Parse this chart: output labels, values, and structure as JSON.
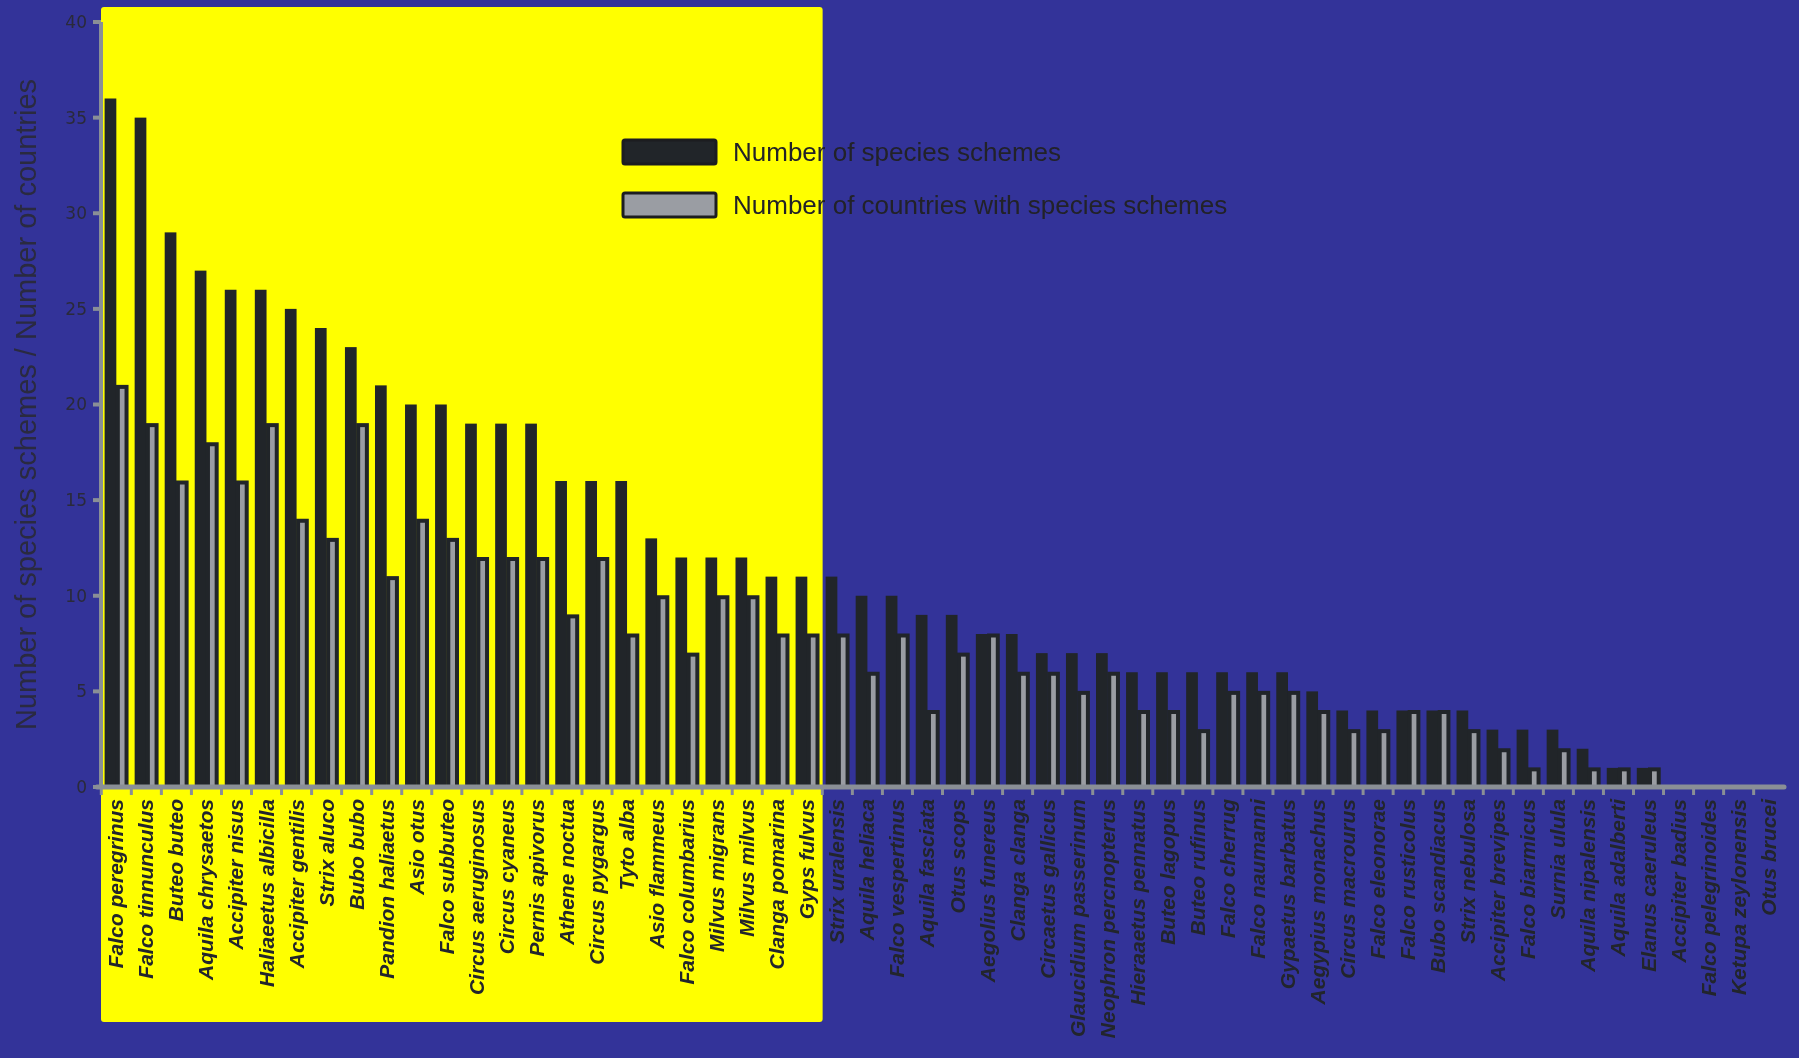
{
  "chart_data": {
    "type": "bar",
    "ylabel": "Number of species schemes / Number of countries",
    "categories": [
      "Falco peregrinus",
      "Falco tinnunculus",
      "Buteo buteo",
      "Aquila chrysaetos",
      "Accipiter nisus",
      "Haliaeetus albicilla",
      "Accipiter gentilis",
      "Strix aluco",
      "Bubo bubo",
      "Pandion haliaetus",
      "Asio otus",
      "Falco subbuteo",
      "Circus aeruginosus",
      "Circus cyaneus",
      "Pernis apivorus",
      "Athene noctua",
      "Circus pygargus",
      "Tyto alba",
      "Asio flammeus",
      "Falco columbarius",
      "Milvus migrans",
      "Milvus milvus",
      "Clanga pomarina",
      "Gyps fulvus",
      "Strix uralensis",
      "Aquila heliaca",
      "Falco vespertinus",
      "Aquila fasciata",
      "Otus scops",
      "Aegolius funereus",
      "Clanga clanga",
      "Circaetus gallicus",
      "Glaucidium passerinum",
      "Neophron percnopterus",
      "Hieraaetus pennatus",
      "Buteo lagopus",
      "Buteo rufinus",
      "Falco cherrug",
      "Falco naumanni",
      "Gypaetus barbatus",
      "Aegypius monachus",
      "Circus macrourus",
      "Falco eleonorae",
      "Falco rusticolus",
      "Bubo scandiacus",
      "Strix nebulosa",
      "Accipiter brevipes",
      "Falco biarmicus",
      "Surnia ulula",
      "Aquila nipalensis",
      "Aquila adalberti",
      "Elanus caeruleus",
      "Accipiter badius",
      "Falco pelegrinoides",
      "Ketupa zeylonensis",
      "Otus brucei"
    ],
    "series": [
      {
        "name": "Number of species schemes",
        "color": "#212529",
        "values": [
          36,
          35,
          29,
          27,
          26,
          26,
          25,
          24,
          23,
          21,
          20,
          20,
          19,
          19,
          19,
          16,
          16,
          16,
          13,
          12,
          12,
          12,
          11,
          11,
          11,
          10,
          10,
          9,
          9,
          8,
          8,
          7,
          7,
          7,
          6,
          6,
          6,
          6,
          6,
          6,
          5,
          4,
          4,
          4,
          4,
          4,
          3,
          3,
          3,
          2,
          1,
          1,
          0,
          0,
          0,
          0
        ]
      },
      {
        "name": "Number of countries with species schemes",
        "color": "#9a9da3",
        "values": [
          21,
          19,
          16,
          18,
          16,
          19,
          14,
          13,
          19,
          11,
          14,
          13,
          12,
          12,
          12,
          9,
          12,
          8,
          10,
          7,
          10,
          10,
          8,
          8,
          8,
          6,
          8,
          4,
          7,
          8,
          6,
          6,
          5,
          6,
          4,
          4,
          3,
          5,
          5,
          5,
          4,
          3,
          3,
          4,
          4,
          3,
          2,
          1,
          2,
          1,
          1,
          1,
          0,
          0,
          0,
          0
        ]
      }
    ],
    "ylim": [
      0,
      40
    ],
    "yticks": [
      0,
      5,
      10,
      15,
      20,
      25,
      30,
      35,
      40
    ],
    "bands": [
      {
        "axis": "x",
        "from": "Falco peregrinus",
        "to": "Gyps fulvus",
        "color": "#ffff00"
      }
    ],
    "legend": "top",
    "grid": false
  }
}
